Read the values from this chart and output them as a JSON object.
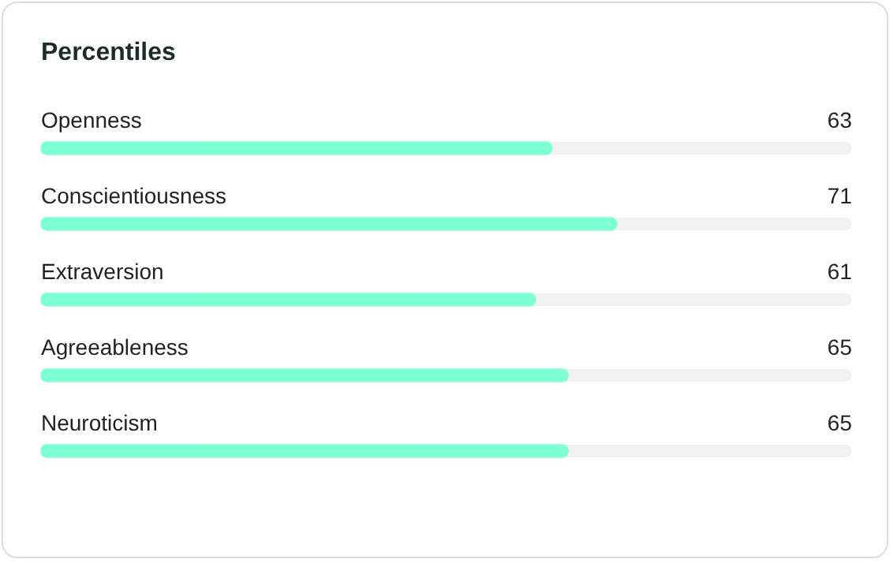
{
  "chart_data": {
    "type": "bar",
    "orientation": "horizontal",
    "title": "Percentiles",
    "categories": [
      "Openness",
      "Conscientiousness",
      "Extraversion",
      "Agreeableness",
      "Neuroticism"
    ],
    "values": [
      63,
      71,
      61,
      65,
      65
    ],
    "color": "#7fffd4",
    "xlim": [
      0,
      100
    ],
    "data_labels": true,
    "tick_labels": false,
    "legend": false
  }
}
